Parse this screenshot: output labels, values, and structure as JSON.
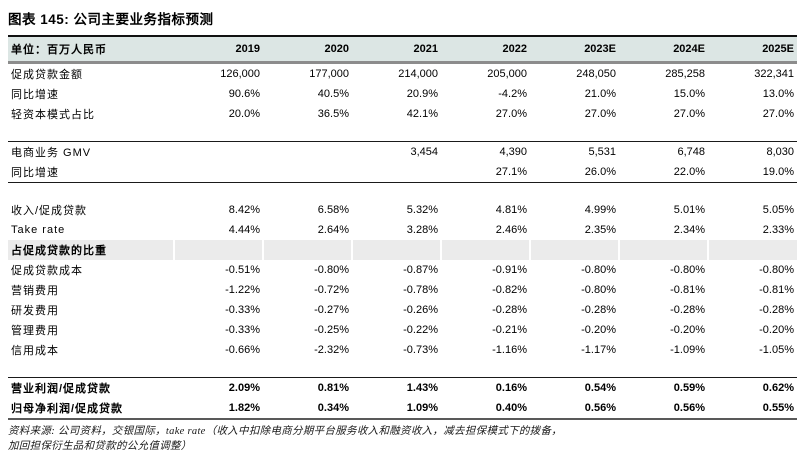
{
  "title": "图表 145: 公司主要业务指标预测",
  "table": {
    "unit_label": "单位：百万人民币",
    "years": [
      "2019",
      "2020",
      "2021",
      "2022",
      "2023E",
      "2024E",
      "2025E"
    ],
    "rows": [
      {
        "type": "data",
        "label": "促成贷款金额",
        "values": [
          "126,000",
          "177,000",
          "214,000",
          "205,000",
          "248,050",
          "285,258",
          "322,341"
        ]
      },
      {
        "type": "data",
        "label": "同比增速",
        "values": [
          "90.6%",
          "40.5%",
          "20.9%",
          "-4.2%",
          "21.0%",
          "15.0%",
          "13.0%"
        ]
      },
      {
        "type": "data",
        "label": "轻资本模式占比",
        "values": [
          "20.0%",
          "36.5%",
          "42.1%",
          "27.0%",
          "27.0%",
          "27.0%",
          "27.0%"
        ]
      },
      {
        "type": "gap"
      },
      {
        "type": "rule"
      },
      {
        "type": "data",
        "label": "电商业务 GMV",
        "values": [
          "",
          "",
          "3,454",
          "4,390",
          "5,531",
          "6,748",
          "8,030"
        ]
      },
      {
        "type": "data",
        "label": "同比增速",
        "values": [
          "",
          "",
          "",
          "27.1%",
          "26.0%",
          "22.0%",
          "19.0%"
        ]
      },
      {
        "type": "rule"
      },
      {
        "type": "gap"
      },
      {
        "type": "data",
        "label": "收入/促成贷款",
        "values": [
          "8.42%",
          "6.58%",
          "5.32%",
          "4.81%",
          "4.99%",
          "5.01%",
          "5.05%"
        ]
      },
      {
        "type": "data",
        "label": "Take rate",
        "values": [
          "4.44%",
          "2.64%",
          "3.28%",
          "2.46%",
          "2.35%",
          "2.34%",
          "2.33%"
        ]
      },
      {
        "type": "section",
        "label": "占促成贷款的比重",
        "values": [
          "",
          "",
          "",
          "",
          "",
          "",
          ""
        ]
      },
      {
        "type": "data",
        "label": "促成贷款成本",
        "values": [
          "-0.51%",
          "-0.80%",
          "-0.87%",
          "-0.91%",
          "-0.80%",
          "-0.80%",
          "-0.80%"
        ]
      },
      {
        "type": "data",
        "label": "营销费用",
        "values": [
          "-1.22%",
          "-0.72%",
          "-0.78%",
          "-0.82%",
          "-0.80%",
          "-0.81%",
          "-0.81%"
        ]
      },
      {
        "type": "data",
        "label": "研发费用",
        "values": [
          "-0.33%",
          "-0.27%",
          "-0.26%",
          "-0.28%",
          "-0.28%",
          "-0.28%",
          "-0.28%"
        ]
      },
      {
        "type": "data",
        "label": "管理费用",
        "values": [
          "-0.33%",
          "-0.25%",
          "-0.22%",
          "-0.21%",
          "-0.20%",
          "-0.20%",
          "-0.20%"
        ]
      },
      {
        "type": "data",
        "label": "信用成本",
        "values": [
          "-0.66%",
          "-2.32%",
          "-0.73%",
          "-1.16%",
          "-1.17%",
          "-1.09%",
          "-1.05%"
        ]
      },
      {
        "type": "gap"
      },
      {
        "type": "rule"
      },
      {
        "type": "data",
        "bold": true,
        "label": "营业利润/促成贷款",
        "values": [
          "2.09%",
          "0.81%",
          "1.43%",
          "0.16%",
          "0.54%",
          "0.59%",
          "0.62%"
        ]
      },
      {
        "type": "data",
        "bold": true,
        "label": "归母净利润/促成贷款",
        "values": [
          "1.82%",
          "0.34%",
          "1.09%",
          "0.40%",
          "0.56%",
          "0.56%",
          "0.55%"
        ]
      }
    ]
  },
  "footnote": {
    "line1": "资料来源: 公司资料，交银国际，take rate（收入中扣除电商分期平台服务收入和融资收入，减去担保模式下的拨备，",
    "line2": "加回担保衍生品和贷款的公允值调整）"
  },
  "colors": {
    "header_bg": "#dce6e4",
    "section_bg": "#ebebeb",
    "top_rule": "#111111",
    "header_rule": "#8c8c8c",
    "bottom_rule": "#595959",
    "thin_rule": "#1a1a1a"
  }
}
